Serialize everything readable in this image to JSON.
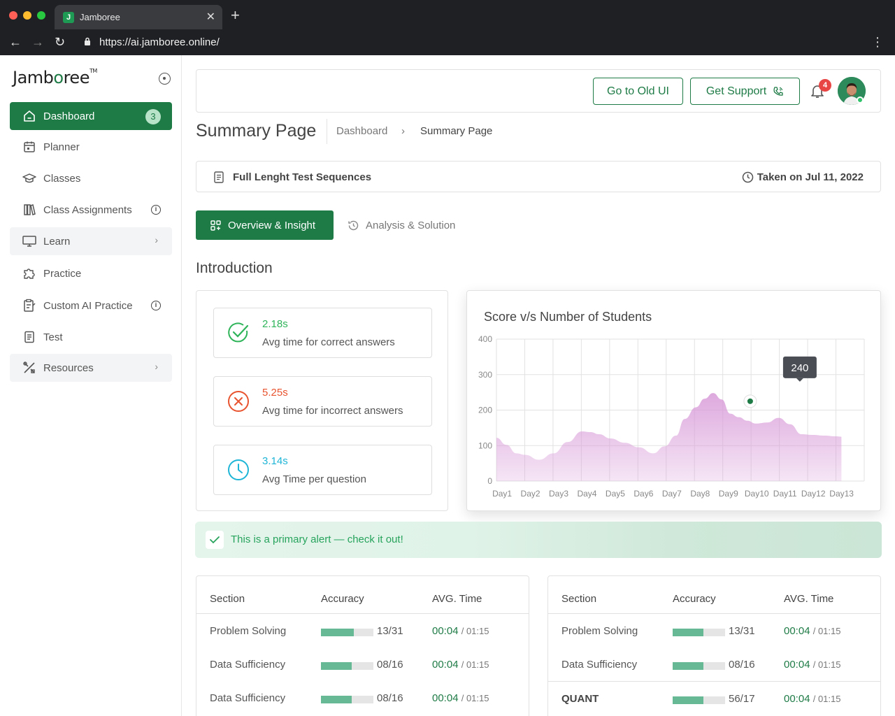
{
  "browser": {
    "tab_title": "Jamboree",
    "favicon_letter": "J",
    "url": "https://ai.jamboree.online/"
  },
  "sidebar": {
    "logo": {
      "pre": "Jamb",
      "o": "o",
      "post": "ree",
      "tm": "TM"
    },
    "items": [
      {
        "label": "Dashboard",
        "icon": "home-icon",
        "badge": "3"
      },
      {
        "label": "Planner",
        "icon": "calendar-icon"
      },
      {
        "label": "Classes",
        "icon": "graduation-cap-icon"
      },
      {
        "label": "Class Assignments",
        "icon": "books-icon",
        "info": "i"
      },
      {
        "label": "Learn",
        "icon": "monitor-icon"
      },
      {
        "label": "Practice",
        "icon": "puzzle-icon"
      },
      {
        "label": "Custom AI Practice",
        "icon": "clipboard-icon",
        "info": "i"
      },
      {
        "label": "Test",
        "icon": "document-icon"
      },
      {
        "label": "Resources",
        "icon": "tools-icon"
      }
    ]
  },
  "header": {
    "old_ui_label": "Go to Old UI",
    "support_label": "Get Support",
    "notification_count": "4"
  },
  "page": {
    "title": "Summary Page",
    "breadcrumb": [
      "Dashboard",
      "Summary Page"
    ]
  },
  "test_bar": {
    "name": "Full Lenght Test Sequences",
    "taken": "Taken on Jul 11, 2022"
  },
  "tabs": {
    "overview": "Overview & Insight",
    "analysis": "Analysis & Solution"
  },
  "intro": {
    "title": "Introduction",
    "stats": [
      {
        "value": "2.18s",
        "label": "Avg time for correct answers",
        "color": "#2fb45a",
        "icon": "check-circle-icon"
      },
      {
        "value": "5.25s",
        "label": "Avg time for incorrect answers",
        "color": "#e8542f",
        "icon": "x-circle-icon"
      },
      {
        "value": "3.14s",
        "label": "Avg Time per question",
        "color": "#1fb5d6",
        "icon": "clock-icon"
      }
    ]
  },
  "chart_data": {
    "type": "area",
    "title": "Score v/s Number of Students",
    "categories": [
      "Day1",
      "Day2",
      "Day3",
      "Day4",
      "Day5",
      "Day6",
      "Day7",
      "Day8",
      "Day9",
      "Day10",
      "Day11",
      "Day12",
      "Day13"
    ],
    "x": [
      1,
      1.35,
      1.7,
      2,
      2.5,
      3,
      3.5,
      4,
      4.3,
      4.6,
      5,
      5.5,
      6,
      6.5,
      6.9,
      7.3,
      7.6,
      8,
      8.3,
      8.6,
      8.9,
      9.2,
      9.5,
      9.8,
      10.1,
      10.5,
      10.9,
      11.3,
      11.7,
      12.1,
      12.5,
      12.9,
      13.1
    ],
    "values": [
      122,
      102,
      78,
      74,
      60,
      78,
      110,
      140,
      138,
      132,
      120,
      108,
      95,
      78,
      98,
      128,
      175,
      208,
      232,
      248,
      230,
      190,
      180,
      170,
      162,
      165,
      178,
      160,
      132,
      130,
      128,
      126,
      125
    ],
    "ylim": [
      0,
      400
    ],
    "yticks": [
      0,
      100,
      200,
      300,
      400
    ],
    "grid": true,
    "highlight": {
      "x": 9.9,
      "y": 225,
      "label": "240"
    },
    "color": "#d89ad8"
  },
  "alert": {
    "text": "This is a primary alert — check it out!"
  },
  "tables": [
    {
      "headers": [
        "Section",
        "Accuracy",
        "AVG. Time"
      ],
      "rows": [
        {
          "section": "Problem Solving",
          "accuracy": "13/31",
          "fill": 0.62,
          "time": "00:04",
          "total": "/ 01:15"
        },
        {
          "section": "Data Sufficiency",
          "accuracy": "08/16",
          "fill": 0.58,
          "time": "00:04",
          "total": "/ 01:15"
        },
        {
          "section": "Data Sufficiency",
          "accuracy": "08/16",
          "fill": 0.58,
          "time": "00:04",
          "total": "/ 01:15"
        }
      ]
    },
    {
      "headers": [
        "Section",
        "Accuracy",
        "AVG. Time"
      ],
      "rows": [
        {
          "section": "Problem Solving",
          "accuracy": "13/31",
          "fill": 0.58,
          "time": "00:04",
          "total": "/ 01:15"
        },
        {
          "section": "Data Sufficiency",
          "accuracy": "08/16",
          "fill": 0.58,
          "time": "00:04",
          "total": "/ 01:15"
        },
        {
          "section": "QUANT",
          "accuracy": "56/17",
          "fill": 0.58,
          "time": "00:04",
          "total": "/ 01:15",
          "bold": true
        }
      ]
    }
  ],
  "colors": {
    "primary": "#1e7b46",
    "bar_fill": "#67b895"
  }
}
